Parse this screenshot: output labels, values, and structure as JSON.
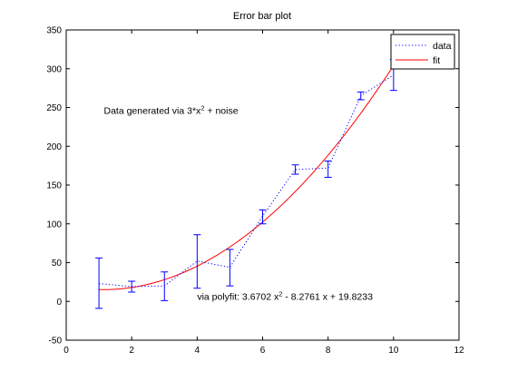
{
  "chart_data": {
    "type": "line",
    "title": "Error bar plot",
    "xlabel": "",
    "ylabel": "",
    "xlim": [
      0,
      12
    ],
    "ylim": [
      -50,
      350
    ],
    "xticks": [
      "0",
      "2",
      "4",
      "6",
      "8",
      "10",
      "12"
    ],
    "yticks": [
      "-50",
      "0",
      "50",
      "100",
      "150",
      "200",
      "250",
      "300",
      "350"
    ],
    "grid": false,
    "legend_position": "top-right",
    "series": [
      {
        "name": "data",
        "style": "dotted",
        "color": "#0000ff",
        "x": [
          1,
          2,
          3,
          4,
          5,
          6,
          7,
          8,
          9,
          10
        ],
        "y": [
          23,
          19,
          20,
          52,
          44,
          110,
          170,
          172,
          265,
          292
        ],
        "error_bars": {
          "lower": [
            -9,
            12,
            1,
            17,
            20,
            100,
            164,
            160,
            260,
            272
          ],
          "upper": [
            56,
            26,
            38,
            86,
            67,
            118,
            176,
            181,
            270,
            312
          ]
        }
      },
      {
        "name": "fit",
        "style": "solid",
        "color": "#ff0000",
        "polynomial": [
          3.6702,
          -8.2761,
          19.8233
        ],
        "x_range": [
          1,
          10
        ]
      }
    ],
    "annotations": [
      {
        "id": "generated",
        "pre": "Data generated via 3*x",
        "sup": "2",
        "post": " + noise",
        "x": 1.15,
        "y": 242
      },
      {
        "id": "polyfit",
        "pre": "via polyfit:    3.6702 x",
        "sup": "2",
        "post": " - 8.2761 x + 19.8233",
        "x": 4.0,
        "y": 2
      }
    ]
  }
}
